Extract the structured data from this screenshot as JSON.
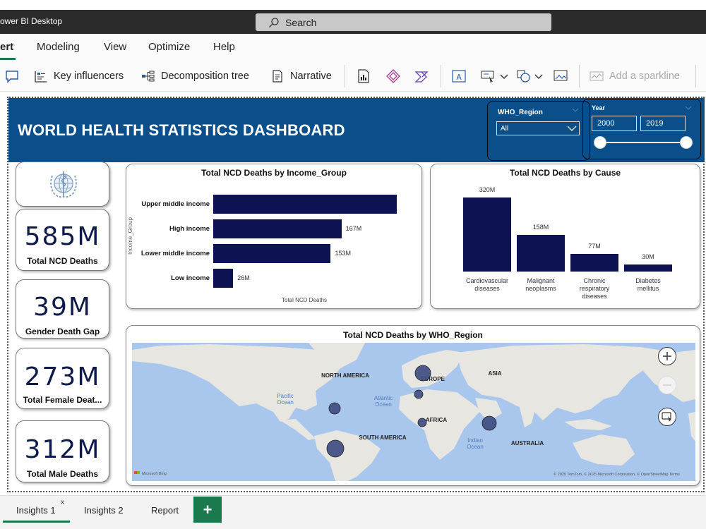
{
  "app": {
    "title": "ower BI Desktop"
  },
  "search": {
    "label": "Search"
  },
  "menu": {
    "items": [
      "ert",
      "Modeling",
      "View",
      "Optimize",
      "Help"
    ]
  },
  "ribbon": {
    "key_influencers": "Key influencers",
    "decomposition_tree": "Decomposition tree",
    "narrative": "Narrative",
    "add_sparkline": "Add a sparkline"
  },
  "dashboard": {
    "title": "WORLD HEALTH STATISTICS DASHBOARD",
    "region_slicer": {
      "label": "WHO_Region",
      "value": "All"
    },
    "year_slicer": {
      "label": "Year",
      "start": "2000",
      "end": "2019"
    }
  },
  "kpis": [
    {
      "value": "585M",
      "label": "Total NCD Deaths"
    },
    {
      "value": "39M",
      "label": "Gender Death Gap"
    },
    {
      "value": "273M",
      "label": "Total Female Deat..."
    },
    {
      "value": "312M",
      "label": "Total Male Deaths"
    }
  ],
  "chart_data": [
    {
      "type": "bar",
      "orientation": "horizontal",
      "title": "Total NCD Deaths by Income_Group",
      "ylabel": "Income_Group",
      "xlabel": "Total NCD Deaths",
      "categories": [
        "Upper middle income",
        "High income",
        "Lower middle income",
        "Low income"
      ],
      "values": [
        239,
        167,
        153,
        26
      ],
      "data_labels": [
        "",
        "167M",
        "153M",
        "26M"
      ],
      "color": "#0d1253"
    },
    {
      "type": "bar",
      "title": "Total NCD Deaths by Cause",
      "categories": [
        "Cardiovascular diseases",
        "Malignant neoplasms",
        "Chronic respiratory diseases",
        "Diabetes mellitus"
      ],
      "category_lines": [
        [
          "Cardiovascular",
          "diseases"
        ],
        [
          "Malignant",
          "neoplasms"
        ],
        [
          "Chronic",
          "respiratory",
          "diseases"
        ],
        [
          "Diabetes",
          "mellitus"
        ]
      ],
      "values": [
        320,
        158,
        77,
        30
      ],
      "data_labels": [
        "320M",
        "158M",
        "77M",
        "30M"
      ],
      "color": "#0d1253"
    },
    {
      "type": "map",
      "title": "Total NCD Deaths by WHO_Region",
      "labels": {
        "north_america": "NORTH AMERICA",
        "europe": "EUROPE",
        "asia": "ASIA",
        "africa": "AFRICA",
        "south_america": "SOUTH AMERICA",
        "australia": "AUSTRALIA",
        "pacific": "Pacific Ocean",
        "atlantic": "Atlantic Ocean",
        "indian": "Indian Ocean"
      },
      "attribution": "© 2025 TomTom, © 2025 Microsoft Corporation, © OpenStreetMap  Terms",
      "brand": "Microsoft Bing",
      "bubble_color": "#3c4a80"
    }
  ],
  "tabs": [
    {
      "label": "Insights 1",
      "close": "x"
    },
    {
      "label": "Insights 2"
    },
    {
      "label": "Report"
    }
  ],
  "tab_add": "+"
}
